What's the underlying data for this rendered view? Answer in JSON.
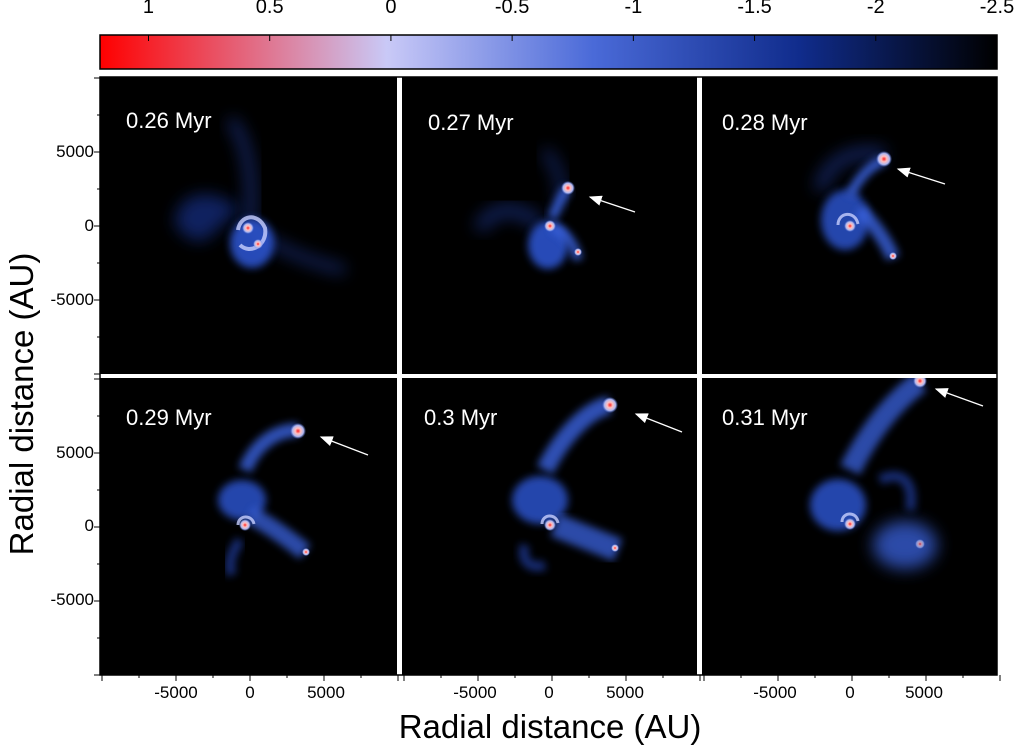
{
  "figure": {
    "colorbar": {
      "ticks": [
        "1",
        "0.5",
        "0",
        "-0.5",
        "-1",
        "-1.5",
        "-2",
        "-2.5"
      ],
      "tick_values": [
        1,
        0.5,
        0,
        -0.5,
        -1,
        -1.5,
        -2,
        -2.5
      ],
      "range": [
        1.2,
        -2.5
      ],
      "colors": {
        "max": "#ff0000",
        "mid": "#c8c8f8",
        "low": "#1e3aa0",
        "min": "#000000"
      }
    },
    "panels": [
      {
        "time": "0.26 Myr"
      },
      {
        "time": "0.27 Myr"
      },
      {
        "time": "0.28 Myr"
      },
      {
        "time": "0.29 Myr"
      },
      {
        "time": "0.3 Myr"
      },
      {
        "time": "0.31 Myr"
      }
    ],
    "y_ticks_top": [
      "5000",
      "0",
      "-5000"
    ],
    "y_ticks_bottom": [
      "5000",
      "0",
      "-5000"
    ],
    "x_ticks": [
      "-5000",
      "0",
      "5000"
    ],
    "xlabel": "Radial distance (AU)",
    "ylabel": "Radial distance (AU)",
    "axis_range": [
      -10000,
      10000
    ]
  }
}
